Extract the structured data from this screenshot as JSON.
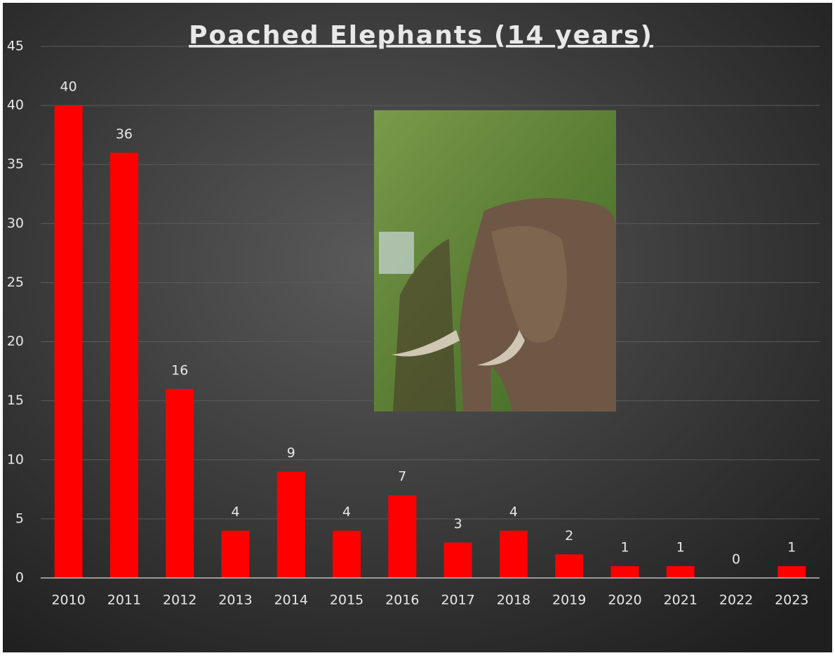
{
  "chart_data": {
    "type": "bar",
    "title": "Poached Elephants (14 years)",
    "categories": [
      "2010",
      "2011",
      "2012",
      "2013",
      "2014",
      "2015",
      "2016",
      "2017",
      "2018",
      "2019",
      "2020",
      "2021",
      "2022",
      "2023"
    ],
    "values": [
      40,
      36,
      16,
      4,
      9,
      4,
      7,
      3,
      4,
      2,
      1,
      1,
      0,
      1
    ],
    "color": "#ff0000",
    "ylim": [
      0,
      45
    ],
    "yticks": [
      0,
      5,
      10,
      15,
      20,
      25,
      30,
      35,
      40,
      45
    ],
    "grid": true
  }
}
